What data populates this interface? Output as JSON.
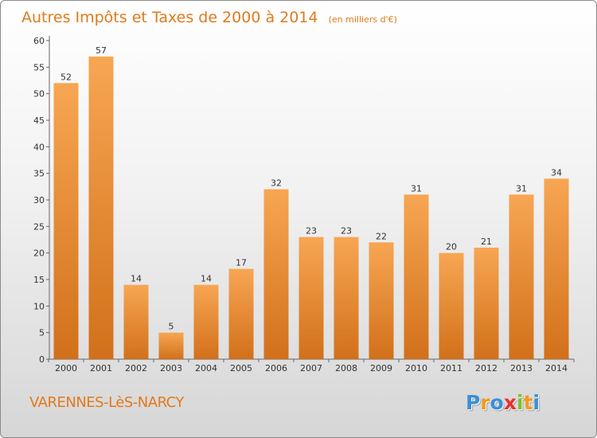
{
  "chart_data": {
    "type": "bar",
    "title": "Autres Impôts et Taxes de 2000 à 2014",
    "subtitle": "(en milliers d'€)",
    "categories": [
      "2000",
      "2001",
      "2002",
      "2003",
      "2004",
      "2005",
      "2006",
      "2007",
      "2008",
      "2009",
      "2010",
      "2011",
      "2012",
      "2013",
      "2014"
    ],
    "values": [
      52,
      57,
      14,
      5,
      14,
      17,
      32,
      23,
      23,
      22,
      31,
      20,
      21,
      31,
      34
    ],
    "ylim": [
      0,
      60
    ],
    "yticks": [
      0,
      5,
      10,
      15,
      20,
      25,
      30,
      35,
      40,
      45,
      50,
      55,
      60
    ],
    "grid": false,
    "legend": "none",
    "bar_color": "#f0892b"
  },
  "footer": {
    "town": "VARENNES-LèS-NARCY",
    "logo_letters": [
      "P",
      "r",
      "o",
      "x",
      "i",
      "t",
      "i"
    ],
    "logo_colors": [
      "#3a8fd8",
      "#f39a1f",
      "#3a8fd8",
      "#e8312f",
      "#7fbf2a",
      "#f39a1f",
      "#3a8fd8"
    ]
  }
}
